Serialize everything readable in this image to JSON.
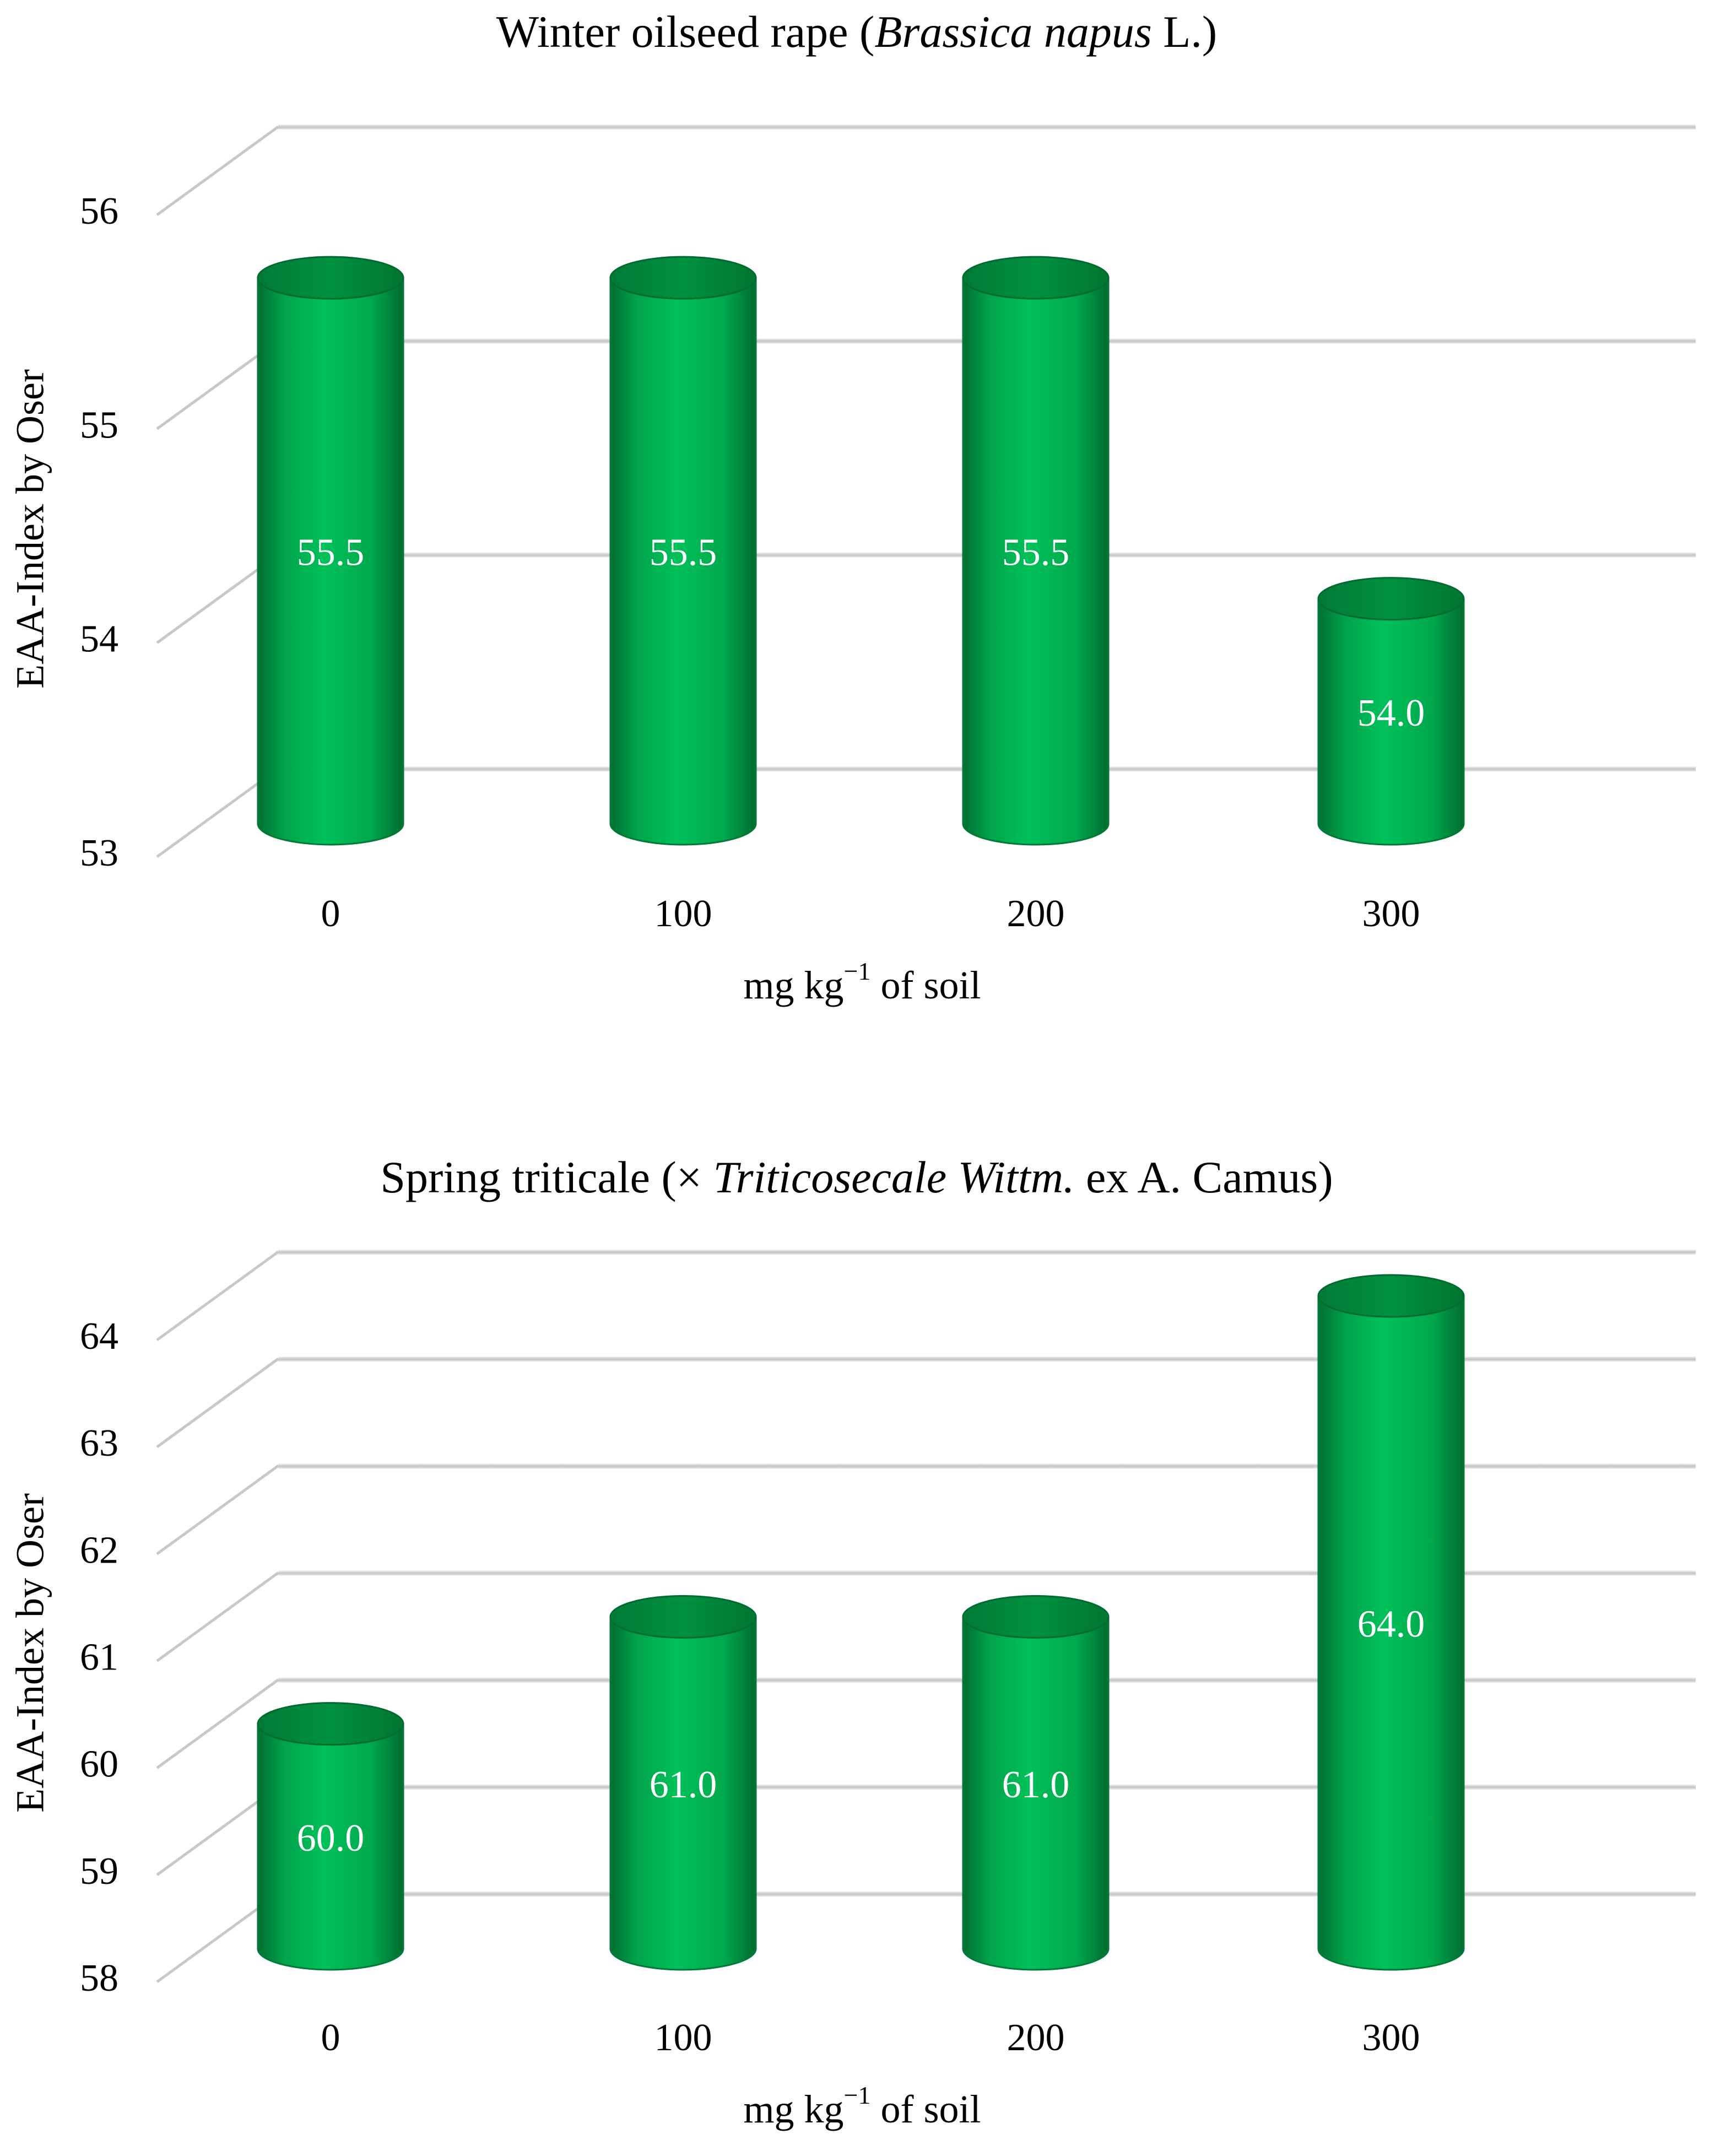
{
  "chart_data": [
    {
      "type": "bar",
      "title_parts": [
        {
          "text": "Winter oilseed rape (",
          "italic": false
        },
        {
          "text": "Brassica napus",
          "italic": true
        },
        {
          "text": " L.)",
          "italic": false
        }
      ],
      "xlabel": "mg kg",
      "xlabel_sup": "−1",
      "xlabel_tail": " of soil",
      "ylabel": "EAA-Index by Oser",
      "categories": [
        "0",
        "100",
        "200",
        "300"
      ],
      "values": [
        55.5,
        55.5,
        55.5,
        54.0
      ],
      "labels": [
        "55.5",
        "55.5",
        "55.5",
        "54.0"
      ],
      "ylim": [
        53,
        56
      ],
      "yticks": [
        "53",
        "54",
        "55",
        "56"
      ],
      "grid": true,
      "style": "3d-cylinder"
    },
    {
      "type": "bar",
      "title_parts": [
        {
          "text": "Spring triticale (× ",
          "italic": false
        },
        {
          "text": "Triticosecale Wittm.",
          "italic": true
        },
        {
          "text": " ex A. Camus)",
          "italic": false
        }
      ],
      "xlabel": "mg kg",
      "xlabel_sup": "−1",
      "xlabel_tail": " of soil",
      "ylabel": "EAA-Index by Oser",
      "categories": [
        "0",
        "100",
        "200",
        "300"
      ],
      "values": [
        60.0,
        61.0,
        61.0,
        64.0
      ],
      "labels": [
        "60.0",
        "61.0",
        "61.0",
        "64.0"
      ],
      "ylim": [
        58,
        64
      ],
      "yticks": [
        "58",
        "59",
        "60",
        "61",
        "62",
        "63",
        "64"
      ],
      "grid": true,
      "style": "3d-cylinder"
    }
  ],
  "colors": {
    "bar_front": "#00b050",
    "bar_edge": "#007a37",
    "bar_top": "#00933f",
    "bar_top_edge": "#006b30",
    "label": "#ffffff",
    "grid": "#c8c8c8",
    "text": "#000000"
  }
}
